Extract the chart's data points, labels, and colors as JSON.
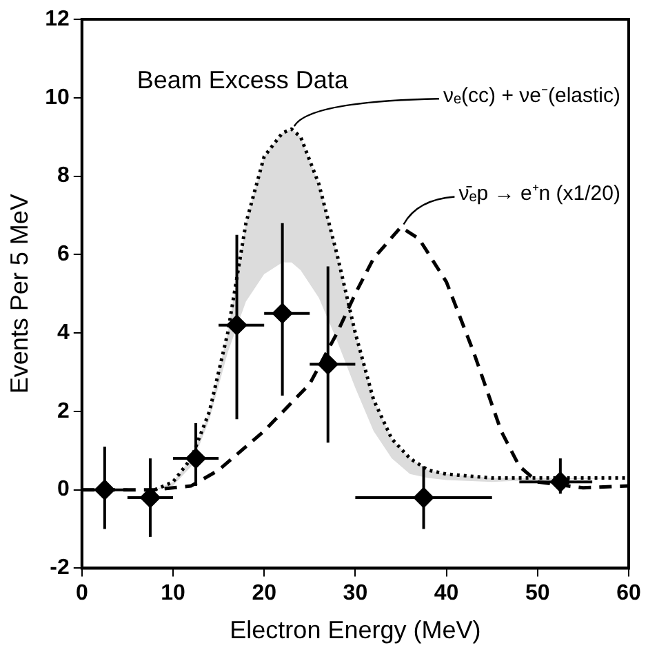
{
  "chart_data": {
    "type": "line",
    "xlabel": "Electron Energy (MeV)",
    "ylabel": "Events Per 5 MeV",
    "annotations": [
      "Beam Excess Data"
    ],
    "xlim": [
      0,
      60
    ],
    "xticks": [
      0,
      10,
      20,
      30,
      40,
      50,
      60
    ],
    "ylim": [
      -2,
      12
    ],
    "yticks": [
      -2,
      0,
      2,
      4,
      6,
      8,
      10,
      12
    ],
    "grid": false,
    "legend": false,
    "series": [
      {
        "name": "νₑ(cc) + νe⁻(elastic)",
        "type": "line",
        "color": "#000000",
        "line_style": "dotted",
        "x": [
          8,
          10,
          12,
          14,
          16,
          18,
          20,
          22,
          23,
          24,
          26,
          28,
          30,
          32,
          34,
          36,
          38,
          40,
          45,
          50,
          60
        ],
        "values": [
          0,
          0.2,
          0.8,
          2,
          4,
          6.8,
          8.5,
          9.1,
          9.2,
          9,
          7.8,
          6,
          4,
          2.3,
          1.3,
          0.8,
          0.5,
          0.4,
          0.3,
          0.3,
          0.3
        ],
        "upper": [
          0,
          0.2,
          0.8,
          2,
          4,
          6.8,
          8.5,
          9.1,
          9.2,
          9,
          7.8,
          6,
          4,
          2.3,
          1.3,
          0.8,
          0.5,
          0.4,
          0.3,
          0.3,
          0.3
        ],
        "lower": [
          0,
          0.1,
          0.6,
          1.8,
          3.5,
          4.8,
          5.5,
          5.8,
          5.8,
          5.6,
          4.9,
          3.8,
          2.6,
          1.5,
          0.8,
          0.4,
          0.3,
          0.25,
          0.2,
          0.25,
          0.3
        ]
      },
      {
        "name": "ν̄ₑp → e⁺n (x1/20)",
        "type": "line",
        "color": "#000000",
        "line_style": "dashed",
        "x": [
          0,
          8,
          12,
          15,
          20,
          25,
          28,
          30,
          32,
          35,
          37,
          40,
          43,
          46,
          48,
          50,
          55,
          60
        ],
        "values": [
          0,
          0,
          0.1,
          0.5,
          1.5,
          2.7,
          4,
          5,
          5.9,
          6.7,
          6.4,
          5.3,
          3.5,
          1.5,
          0.6,
          0.2,
          0.05,
          0.1
        ]
      },
      {
        "type": "scatter",
        "color": "#000000",
        "marker": "diamond",
        "x": [
          2.5,
          7.5,
          12.5,
          17,
          22,
          27,
          37.5,
          52.5
        ],
        "values": [
          0,
          -0.2,
          0.8,
          4.2,
          4.5,
          3.2,
          -0.2,
          0.2
        ],
        "errors": [
          [
            -1,
            1.1
          ],
          [
            -1.2,
            0.8
          ],
          [
            0.1,
            1.7
          ],
          [
            1.8,
            6.5
          ],
          [
            2.4,
            6.8
          ],
          [
            1.2,
            5.7
          ],
          [
            -1,
            0.6
          ],
          [
            -0.1,
            0.8
          ]
        ],
        "xerrors": [
          [
            0,
            5
          ],
          [
            5,
            10
          ],
          [
            10,
            15
          ],
          [
            15,
            20
          ],
          [
            20,
            25
          ],
          [
            25,
            30
          ],
          [
            30,
            45
          ],
          [
            48,
            56
          ]
        ]
      }
    ]
  }
}
